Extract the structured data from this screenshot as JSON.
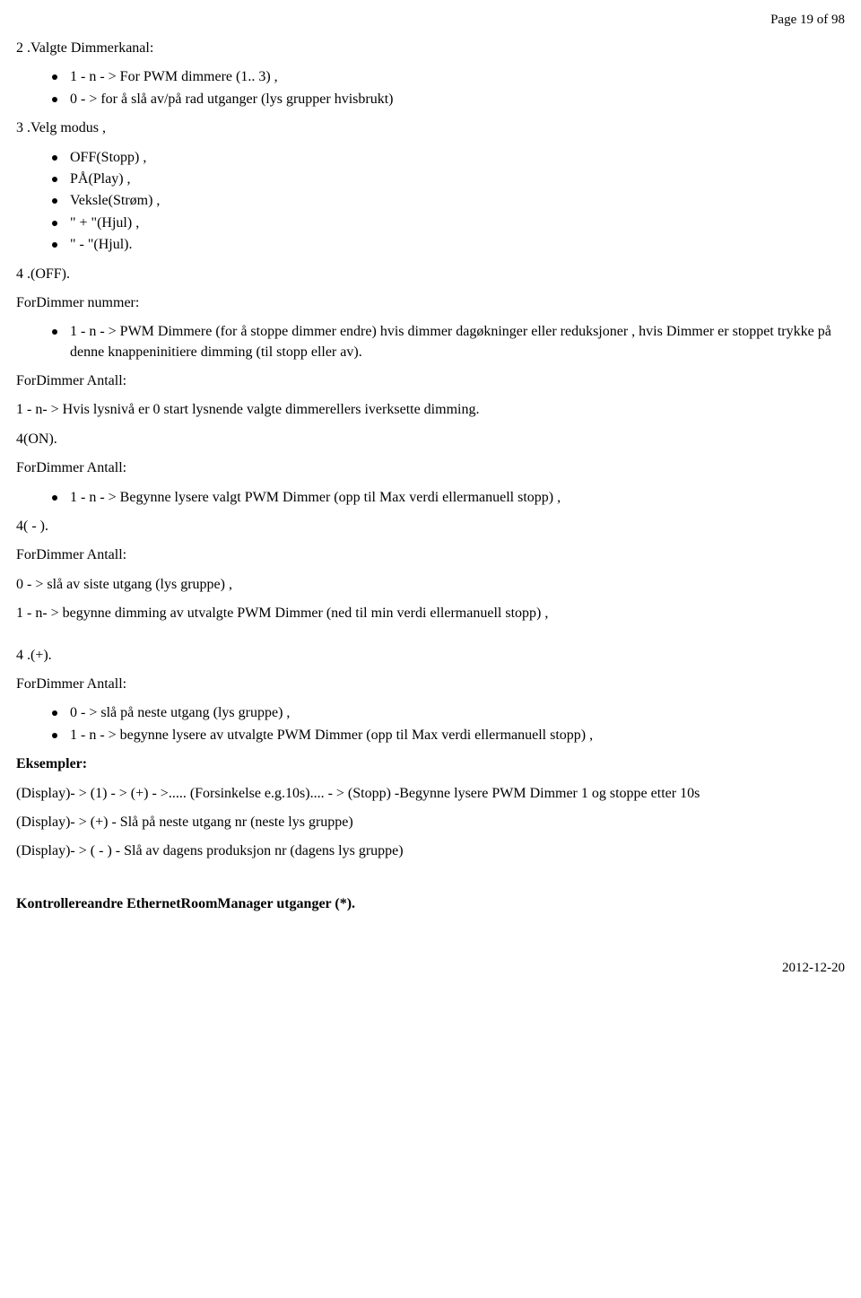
{
  "pageNumber": "Page 19 of 98",
  "h_valgte": "2 .Valgte Dimmerkanal:",
  "list_valgte": [
    "1 - n - > For PWM dimmere (1.. 3) ,",
    "0 - > for å slå av/på rad utganger (lys grupper hvisbrukt)"
  ],
  "h_velg": "3 .Velg modus ,",
  "list_velg": [
    "OFF(Stopp) ,",
    "PÅ(Play) ,",
    "Veksle(Strøm) ,",
    "\" + \"(Hjul) ,",
    "\" - \"(Hjul)."
  ],
  "h_off": "4 .(OFF).",
  "h_fordimmer_nummer": "ForDimmer nummer:",
  "list_nummer": [
    "1 - n - > PWM Dimmere (for å stoppe dimmer endre) hvis dimmer dagøkninger eller reduksjoner , hvis Dimmer er stoppet trykke på denne knappeninitiere dimming (til stopp eller av)."
  ],
  "h_antall1": "ForDimmer Antall:",
  "p_antall1": "1 - n- > Hvis lysnivå er 0 start lysnende valgte dimmerellers iverksette dimming.",
  "h_on": "4(ON).",
  "h_antall2": "ForDimmer Antall:",
  "list_antall2": [
    "1 - n - > Begynne lysere valgt PWM Dimmer (opp til Max verdi ellermanuell stopp) ,"
  ],
  "h_minus": "4( - ).",
  "h_antall3": "ForDimmer Antall:",
  "p_antall3a": "0 - > slå av siste utgang (lys gruppe) ,",
  "p_antall3b": "1 - n- > begynne dimming av utvalgte PWM Dimmer (ned til min verdi ellermanuell stopp) ,",
  "h_plus": "4 .(+).",
  "h_antall4": "ForDimmer Antall:",
  "list_antall4": [
    "0 - > slå på neste utgang (lys gruppe) ,",
    "1 - n - > begynne lysere av utvalgte PWM Dimmer (opp til Max verdi ellermanuell stopp) ,"
  ],
  "h_eksempler": "Eksempler:",
  "p_ex1": "(Display)- > (1) - > (+) - >..... (Forsinkelse e.g.10s).... - > (Stopp) -Begynne lysere PWM Dimmer 1 og stoppe etter 10s",
  "p_ex2": "(Display)- > (+) - Slå på neste utgang nr (neste lys gruppe)",
  "p_ex3": "(Display)- > ( - ) - Slå av dagens produksjon nr (dagens lys gruppe)",
  "h_kontrollere": "Kontrollereandre EthernetRoomManager utganger (*).",
  "footerDate": "2012-12-20"
}
